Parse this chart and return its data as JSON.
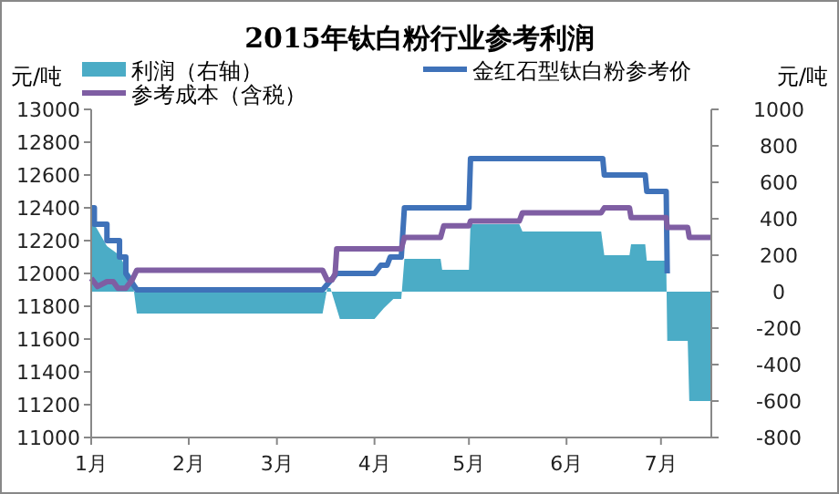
{
  "chart_data": {
    "type": "line",
    "title": "2015年钛白粉行业参考利润",
    "ylabel": "元/吨",
    "y2label": "元/吨",
    "xlim": [
      "2015-01-01",
      "2015-07-17"
    ],
    "xticks": [
      {
        "value": "2015-01-01",
        "label": "1月"
      },
      {
        "value": "2015-02-01",
        "label": "2月"
      },
      {
        "value": "2015-03-01",
        "label": "3月"
      },
      {
        "value": "2015-04-01",
        "label": "4月"
      },
      {
        "value": "2015-05-01",
        "label": "5月"
      },
      {
        "value": "2015-06-01",
        "label": "6月"
      },
      {
        "value": "2015-07-01",
        "label": "7月"
      }
    ],
    "ylim": [
      11000,
      13000
    ],
    "yticks": [
      11000,
      11200,
      11400,
      11600,
      11800,
      12000,
      12200,
      12400,
      12600,
      12800,
      13000
    ],
    "y2lim": [
      -800,
      1000
    ],
    "y2ticks": [
      -800,
      -600,
      -400,
      -200,
      0,
      200,
      400,
      600,
      800,
      1000
    ],
    "legend": "top",
    "series": [
      {
        "name": "利润（右轴）",
        "type": "area",
        "axis": "y2",
        "color": "#4bacc6",
        "x": [
          "2015-01-01",
          "2015-01-02",
          "2015-01-06",
          "2015-01-10",
          "2015-01-12",
          "2015-01-14",
          "2015-01-15T12:00",
          "2015-03-15T12:00",
          "2015-03-17",
          "2015-03-18",
          "2015-03-21",
          "2015-04-01",
          "2015-04-02",
          "2015-04-04",
          "2015-04-07",
          "2015-04-09T12:00",
          "2015-04-10T12:00",
          "2015-04-22",
          "2015-04-22T12:00",
          "2015-05-01",
          "2015-05-01T12:00",
          "2015-05-17",
          "2015-05-18",
          "2015-06-12",
          "2015-06-13",
          "2015-06-21",
          "2015-06-21T12:00",
          "2015-06-26",
          "2015-06-26T12:00",
          "2015-07-02T16:00",
          "2015-07-03",
          "2015-07-09T12:00",
          "2015-07-10",
          "2015-07-17"
        ],
        "values": [
          400,
          370,
          250,
          200,
          130,
          80,
          -120,
          -120,
          20,
          20,
          -150,
          -150,
          -130,
          -90,
          -40,
          -40,
          180,
          180,
          120,
          120,
          370,
          370,
          330,
          330,
          200,
          200,
          260,
          260,
          170,
          170,
          -270,
          -270,
          -600,
          -600
        ]
      },
      {
        "name": "金红石型钛白粉参考价",
        "color": "#3f72b9",
        "x": [
          "2015-01-01",
          "2015-01-02",
          "2015-01-02",
          "2015-01-06",
          "2015-01-06",
          "2015-01-10",
          "2015-01-10",
          "2015-01-12",
          "2015-01-12",
          "2015-01-15T12:00",
          "2015-03-15T12:00",
          "2015-03-20",
          "2015-04-01",
          "2015-04-03",
          "2015-04-05",
          "2015-04-06",
          "2015-04-09T12:00",
          "2015-04-10T12:00",
          "2015-05-01",
          "2015-05-01T12:00",
          "2015-06-12T12:00",
          "2015-06-13",
          "2015-06-26",
          "2015-06-26T12:00",
          "2015-07-02T16:00",
          "2015-07-03"
        ],
        "values": [
          12400,
          12400,
          12300,
          12300,
          12200,
          12200,
          12100,
          12100,
          12000,
          11900,
          11900,
          12000,
          12000,
          12050,
          12050,
          12100,
          12100,
          12400,
          12400,
          12700,
          12700,
          12600,
          12600,
          12500,
          12500,
          12000
        ]
      },
      {
        "name": "参考成本（含税）",
        "color": "#7f5ea3",
        "x": [
          "2015-01-01",
          "2015-01-03",
          "2015-01-06",
          "2015-01-08",
          "2015-01-09T12:00",
          "2015-01-12",
          "2015-01-14",
          "2015-01-15T12:00",
          "2015-03-15T12:00",
          "2015-03-17",
          "2015-03-18T12:00",
          "2015-03-19T12:00",
          "2015-03-20",
          "2015-04-09T12:00",
          "2015-04-10T12:00",
          "2015-04-22",
          "2015-04-23",
          "2015-05-01",
          "2015-05-01T12:00",
          "2015-05-17",
          "2015-05-18",
          "2015-06-12",
          "2015-06-13",
          "2015-06-21",
          "2015-06-21T12:00",
          "2015-07-02T16:00",
          "2015-07-03",
          "2015-07-09T12:00",
          "2015-07-10",
          "2015-07-17"
        ],
        "values": [
          11970,
          11920,
          11950,
          11950,
          11910,
          11910,
          11960,
          12020,
          12020,
          11960,
          11960,
          12000,
          12150,
          12150,
          12220,
          12220,
          12290,
          12290,
          12320,
          12320,
          12370,
          12370,
          12400,
          12400,
          12340,
          12340,
          12280,
          12280,
          12220,
          12220
        ]
      }
    ]
  }
}
